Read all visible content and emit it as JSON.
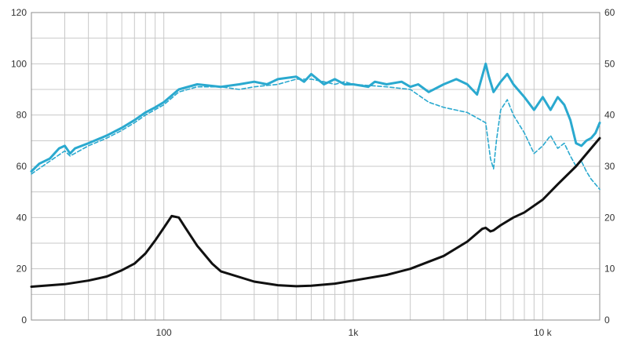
{
  "chart_data": {
    "type": "line",
    "x_scale": "log",
    "xlim": [
      20,
      20000
    ],
    "x_ticks": [
      {
        "value": 100,
        "label": "100"
      },
      {
        "value": 1000,
        "label": "1k"
      },
      {
        "value": 10000,
        "label": "10 k"
      }
    ],
    "y_left": {
      "lim": [
        0,
        120
      ],
      "ticks": [
        "0",
        "20",
        "40",
        "60",
        "80",
        "100",
        "120"
      ]
    },
    "y_right": {
      "lim": [
        0,
        60
      ],
      "ticks": [
        "0",
        "10",
        "20",
        "30",
        "40",
        "50",
        "60"
      ]
    },
    "grid": true,
    "legend": "none",
    "colors": {
      "cyan": "#2aa9cf",
      "black": "#111111",
      "grid": "#c8c8c8",
      "axis": "#8c8c8c"
    },
    "series": [
      {
        "axis": "left",
        "style": "solid",
        "color": "cyan",
        "points": [
          [
            20,
            58
          ],
          [
            22,
            61
          ],
          [
            25,
            63
          ],
          [
            28,
            67
          ],
          [
            30,
            68
          ],
          [
            32,
            65
          ],
          [
            34,
            67
          ],
          [
            40,
            69
          ],
          [
            50,
            72
          ],
          [
            60,
            75
          ],
          [
            70,
            78
          ],
          [
            80,
            81
          ],
          [
            90,
            83
          ],
          [
            100,
            85
          ],
          [
            120,
            90
          ],
          [
            150,
            92
          ],
          [
            200,
            91
          ],
          [
            250,
            92
          ],
          [
            300,
            93
          ],
          [
            350,
            92
          ],
          [
            400,
            94
          ],
          [
            500,
            95
          ],
          [
            550,
            93
          ],
          [
            600,
            96
          ],
          [
            700,
            92
          ],
          [
            800,
            94
          ],
          [
            900,
            92
          ],
          [
            1000,
            92
          ],
          [
            1200,
            91
          ],
          [
            1300,
            93
          ],
          [
            1500,
            92
          ],
          [
            1800,
            93
          ],
          [
            2000,
            91
          ],
          [
            2200,
            92
          ],
          [
            2500,
            89
          ],
          [
            3000,
            92
          ],
          [
            3500,
            94
          ],
          [
            4000,
            92
          ],
          [
            4500,
            88
          ],
          [
            5000,
            100
          ],
          [
            5200,
            95
          ],
          [
            5500,
            89
          ],
          [
            6000,
            93
          ],
          [
            6500,
            96
          ],
          [
            7000,
            92
          ],
          [
            8000,
            87
          ],
          [
            9000,
            82
          ],
          [
            10000,
            87
          ],
          [
            11000,
            82
          ],
          [
            12000,
            87
          ],
          [
            13000,
            84
          ],
          [
            14000,
            78
          ],
          [
            15000,
            69
          ],
          [
            16000,
            68
          ],
          [
            17000,
            70
          ],
          [
            18000,
            71
          ],
          [
            19000,
            73
          ],
          [
            20000,
            77
          ]
        ]
      },
      {
        "axis": "left",
        "style": "dashed",
        "color": "cyan",
        "points": [
          [
            20,
            57
          ],
          [
            25,
            62
          ],
          [
            30,
            66
          ],
          [
            32,
            64
          ],
          [
            40,
            68
          ],
          [
            50,
            71
          ],
          [
            60,
            74
          ],
          [
            70,
            77
          ],
          [
            80,
            80
          ],
          [
            100,
            84
          ],
          [
            120,
            89
          ],
          [
            150,
            91
          ],
          [
            200,
            91
          ],
          [
            250,
            90
          ],
          [
            300,
            91
          ],
          [
            400,
            92
          ],
          [
            500,
            94
          ],
          [
            600,
            94
          ],
          [
            700,
            93
          ],
          [
            800,
            92
          ],
          [
            900,
            93
          ],
          [
            1000,
            92
          ],
          [
            1500,
            91
          ],
          [
            2000,
            90
          ],
          [
            2500,
            85
          ],
          [
            3000,
            83
          ],
          [
            4000,
            81
          ],
          [
            5000,
            77
          ],
          [
            5300,
            63
          ],
          [
            5500,
            59
          ],
          [
            5700,
            70
          ],
          [
            6000,
            82
          ],
          [
            6500,
            86
          ],
          [
            7000,
            80
          ],
          [
            8000,
            73
          ],
          [
            9000,
            65
          ],
          [
            10000,
            68
          ],
          [
            11000,
            72
          ],
          [
            12000,
            67
          ],
          [
            13000,
            69
          ],
          [
            14000,
            64
          ],
          [
            15000,
            60
          ],
          [
            16000,
            62
          ],
          [
            17000,
            58
          ],
          [
            18000,
            55
          ],
          [
            19000,
            53
          ],
          [
            20000,
            51
          ]
        ]
      },
      {
        "axis": "right",
        "style": "solid",
        "color": "black",
        "points": [
          [
            20,
            6.5
          ],
          [
            30,
            7
          ],
          [
            40,
            7.7
          ],
          [
            50,
            8.5
          ],
          [
            60,
            9.7
          ],
          [
            70,
            11
          ],
          [
            80,
            13
          ],
          [
            90,
            15.5
          ],
          [
            100,
            18
          ],
          [
            110,
            20.3
          ],
          [
            120,
            20
          ],
          [
            130,
            18
          ],
          [
            150,
            14.5
          ],
          [
            180,
            11
          ],
          [
            200,
            9.5
          ],
          [
            300,
            7.5
          ],
          [
            400,
            6.8
          ],
          [
            500,
            6.6
          ],
          [
            600,
            6.7
          ],
          [
            800,
            7.1
          ],
          [
            1000,
            7.7
          ],
          [
            1500,
            8.8
          ],
          [
            2000,
            10
          ],
          [
            3000,
            12.5
          ],
          [
            4000,
            15.3
          ],
          [
            4800,
            17.8
          ],
          [
            5000,
            18
          ],
          [
            5300,
            17.3
          ],
          [
            5500,
            17.5
          ],
          [
            6000,
            18.5
          ],
          [
            7000,
            20
          ],
          [
            8000,
            21
          ],
          [
            10000,
            23.5
          ],
          [
            12000,
            26.5
          ],
          [
            15000,
            30
          ],
          [
            18000,
            33.5
          ],
          [
            20000,
            35.5
          ]
        ]
      }
    ]
  }
}
